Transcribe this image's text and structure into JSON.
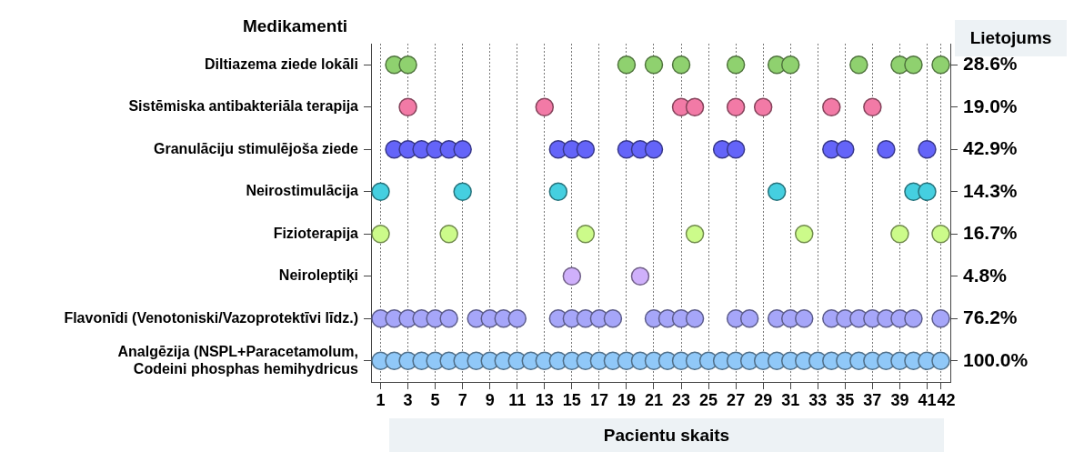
{
  "chart_data": {
    "type": "scatter",
    "orientation": "horizontal",
    "ylabel": "Medikamenti",
    "y2label": "Lietojums",
    "xlabel": "Pacientu skaits",
    "xlim": [
      0.3,
      42.7
    ],
    "xticks": [
      1,
      3,
      5,
      7,
      9,
      11,
      13,
      15,
      17,
      19,
      21,
      23,
      25,
      27,
      29,
      31,
      33,
      35,
      37,
      39,
      41,
      42
    ],
    "categories": [
      "Diltiazema ziede lokāli",
      "Sistēmiska antibakteriāla terapija",
      "Granulāciju stimulējoša ziede",
      "Neirostimulācija",
      "Fizioterapija",
      "Neiroleptiķi",
      "Flavonīdi (Venotoniski/Vazoprotektīvi līdz.)",
      "Analgēzija (NSPL+Paracetamolum,\nCodeini phosphas hemihydricus"
    ],
    "y2_categories": [
      "28.6%",
      "19.0%",
      "42.9%",
      "14.3%",
      "16.7%",
      "4.8%",
      "76.2%",
      "100.0%"
    ],
    "grid": "x",
    "legend": false,
    "marker": "circle",
    "series": [
      {
        "color": "#8fd16f",
        "values": [
          2,
          3,
          19,
          21,
          23,
          27,
          30,
          31,
          36,
          39,
          40,
          42
        ],
        "x": [
          "Diltiazema ziede lokāli",
          "Diltiazema ziede lokāli",
          "Diltiazema ziede lokāli",
          "Diltiazema ziede lokāli",
          "Diltiazema ziede lokāli",
          "Diltiazema ziede lokāli",
          "Diltiazema ziede lokāli",
          "Diltiazema ziede lokāli",
          "Diltiazema ziede lokāli",
          "Diltiazema ziede lokāli",
          "Diltiazema ziede lokāli",
          "Diltiazema ziede lokāli"
        ]
      },
      {
        "color": "#f27aa6",
        "values": [
          3,
          13,
          23,
          24,
          27,
          29,
          34,
          37
        ],
        "x": [
          "Sistēmiska antibakteriāla terapija",
          "Sistēmiska antibakteriāla terapija",
          "Sistēmiska antibakteriāla terapija",
          "Sistēmiska antibakteriāla terapija",
          "Sistēmiska antibakteriāla terapija",
          "Sistēmiska antibakteriāla terapija",
          "Sistēmiska antibakteriāla terapija",
          "Sistēmiska antibakteriāla terapija"
        ]
      },
      {
        "color": "#6464f9",
        "values": [
          2,
          3,
          4,
          5,
          6,
          7,
          14,
          15,
          16,
          19,
          20,
          21,
          26,
          27,
          34,
          35,
          38,
          41
        ],
        "x": [
          "Granulāciju stimulējoša ziede",
          "Granulāciju stimulējoša ziede",
          "Granulāciju stimulējoša ziede",
          "Granulāciju stimulējoša ziede",
          "Granulāciju stimulējoša ziede",
          "Granulāciju stimulējoša ziede",
          "Granulāciju stimulējoša ziede",
          "Granulāciju stimulējoša ziede",
          "Granulāciju stimulējoša ziede",
          "Granulāciju stimulējoša ziede",
          "Granulāciju stimulējoša ziede",
          "Granulāciju stimulējoša ziede",
          "Granulāciju stimulējoša ziede",
          "Granulāciju stimulējoša ziede",
          "Granulāciju stimulējoša ziede",
          "Granulāciju stimulējoša ziede",
          "Granulāciju stimulējoša ziede",
          "Granulāciju stimulējoša ziede"
        ]
      },
      {
        "color": "#45cfe0",
        "values": [
          1,
          7,
          14,
          30,
          40,
          41
        ],
        "x": [
          "Neirostimulācija",
          "Neirostimulācija",
          "Neirostimulācija",
          "Neirostimulācija",
          "Neirostimulācija",
          "Neirostimulācija"
        ]
      },
      {
        "color": "#ccfb8a",
        "values": [
          1,
          6,
          16,
          24,
          32,
          39,
          42
        ],
        "x": [
          "Fizioterapija",
          "Fizioterapija",
          "Fizioterapija",
          "Fizioterapija",
          "Fizioterapija",
          "Fizioterapija",
          "Fizioterapija"
        ]
      },
      {
        "color": "#cfb0fb",
        "values": [
          15,
          20
        ],
        "x": [
          "Neiroleptiķi",
          "Neiroleptiķi"
        ]
      },
      {
        "color": "#a6a6f9",
        "values": [
          1,
          2,
          3,
          4,
          5,
          6,
          8,
          9,
          10,
          11,
          14,
          15,
          16,
          17,
          18,
          21,
          22,
          23,
          24,
          27,
          28,
          30,
          31,
          32,
          34,
          35,
          36,
          37,
          38,
          39,
          40,
          42
        ],
        "x": [
          "Flavonīdi (Venotoniski/Vazoprotektīvi līdz.)",
          "Flavonīdi (Venotoniski/Vazoprotektīvi līdz.)",
          "Flavonīdi (Venotoniski/Vazoprotektīvi līdz.)",
          "Flavonīdi (Venotoniski/Vazoprotektīvi līdz.)",
          "Flavonīdi (Venotoniski/Vazoprotektīvi līdz.)",
          "Flavonīdi (Venotoniski/Vazoprotektīvi līdz.)",
          "Flavonīdi (Venotoniski/Vazoprotektīvi līdz.)",
          "Flavonīdi (Venotoniski/Vazoprotektīvi līdz.)",
          "Flavonīdi (Venotoniski/Vazoprotektīvi līdz.)",
          "Flavonīdi (Venotoniski/Vazoprotektīvi līdz.)",
          "Flavonīdi (Venotoniski/Vazoprotektīvi līdz.)",
          "Flavonīdi (Venotoniski/Vazoprotektīvi līdz.)",
          "Flavonīdi (Venotoniski/Vazoprotektīvi līdz.)",
          "Flavonīdi (Venotoniski/Vazoprotektīvi līdz.)",
          "Flavonīdi (Venotoniski/Vazoprotektīvi līdz.)",
          "Flavonīdi (Venotoniski/Vazoprotektīvi līdz.)",
          "Flavonīdi (Venotoniski/Vazoprotektīvi līdz.)",
          "Flavonīdi (Venotoniski/Vazoprotektīvi līdz.)",
          "Flavonīdi (Venotoniski/Vazoprotektīvi līdz.)",
          "Flavonīdi (Venotoniski/Vazoprotektīvi līdz.)",
          "Flavonīdi (Venotoniski/Vazoprotektīvi līdz.)",
          "Flavonīdi (Venotoniski/Vazoprotektīvi līdz.)",
          "Flavonīdi (Venotoniski/Vazoprotektīvi līdz.)",
          "Flavonīdi (Venotoniski/Vazoprotektīvi līdz.)",
          "Flavonīdi (Venotoniski/Vazoprotektīvi līdz.)",
          "Flavonīdi (Venotoniski/Vazoprotektīvi līdz.)",
          "Flavonīdi (Venotoniski/Vazoprotektīvi līdz.)",
          "Flavonīdi (Venotoniski/Vazoprotektīvi līdz.)",
          "Flavonīdi (Venotoniski/Vazoprotektīvi līdz.)",
          "Flavonīdi (Venotoniski/Vazoprotektīvi līdz.)",
          "Flavonīdi (Venotoniski/Vazoprotektīvi līdz.)",
          "Flavonīdi (Venotoniski/Vazoprotektīvi līdz.)"
        ]
      },
      {
        "color": "#90c8f8",
        "values": [
          1,
          2,
          3,
          4,
          5,
          6,
          7,
          8,
          9,
          10,
          11,
          12,
          13,
          14,
          15,
          16,
          17,
          18,
          19,
          20,
          21,
          22,
          23,
          24,
          25,
          26,
          27,
          28,
          29,
          30,
          31,
          32,
          33,
          34,
          35,
          36,
          37,
          38,
          39,
          40,
          41,
          42
        ],
        "x": [
          "Analgēzija (NSPL+Paracetamolum,\nCodeini phosphas hemihydricus",
          "Analgēzija (NSPL+Paracetamolum,\nCodeini phosphas hemihydricus",
          "Analgēzija (NSPL+Paracetamolum,\nCodeini phosphas hemihydricus",
          "Analgēzija (NSPL+Paracetamolum,\nCodeini phosphas hemihydricus",
          "Analgēzija (NSPL+Paracetamolum,\nCodeini phosphas hemihydricus",
          "Analgēzija (NSPL+Paracetamolum,\nCodeini phosphas hemihydricus",
          "Analgēzija (NSPL+Paracetamolum,\nCodeini phosphas hemihydricus",
          "Analgēzija (NSPL+Paracetamolum,\nCodeini phosphas hemihydricus",
          "Analgēzija (NSPL+Paracetamolum,\nCodeini phosphas hemihydricus",
          "Analgēzija (NSPL+Paracetamolum,\nCodeini phosphas hemihydricus",
          "Analgēzija (NSPL+Paracetamolum,\nCodeini phosphas hemihydricus",
          "Analgēzija (NSPL+Paracetamolum,\nCodeini phosphas hemihydricus",
          "Analgēzija (NSPL+Paracetamolum,\nCodeini phosphas hemihydricus",
          "Analgēzija (NSPL+Paracetamolum,\nCodeini phosphas hemihydricus",
          "Analgēzija (NSPL+Paracetamolum,\nCodeini phosphas hemihydricus",
          "Analgēzija (NSPL+Paracetamolum,\nCodeini phosphas hemihydricus",
          "Analgēzija (NSPL+Paracetamolum,\nCodeini phosphas hemihydricus",
          "Analgēzija (NSPL+Paracetamolum,\nCodeini phosphas hemihydricus",
          "Analgēzija (NSPL+Paracetamolum,\nCodeini phosphas hemihydricus",
          "Analgēzija (NSPL+Paracetamolum,\nCodeini phosphas hemihydricus",
          "Analgēzija (NSPL+Paracetamolum,\nCodeini phosphas hemihydricus",
          "Analgēzija (NSPL+Paracetamolum,\nCodeini phosphas hemihydricus",
          "Analgēzija (NSPL+Paracetamolum,\nCodeini phosphas hemihydricus",
          "Analgēzija (NSPL+Paracetamolum,\nCodeini phosphas hemihydricus",
          "Analgēzija (NSPL+Paracetamolum,\nCodeini phosphas hemihydricus",
          "Analgēzija (NSPL+Paracetamolum,\nCodeini phosphas hemihydricus",
          "Analgēzija (NSPL+Paracetamolum,\nCodeini phosphas hemihydricus",
          "Analgēzija (NSPL+Paracetamolum,\nCodeini phosphas hemihydricus",
          "Analgēzija (NSPL+Paracetamolum,\nCodeini phosphas hemihydricus",
          "Analgēzija (NSPL+Paracetamolum,\nCodeini phosphas hemihydricus",
          "Analgēzija (NSPL+Paracetamolum,\nCodeini phosphas hemihydricus",
          "Analgēzija (NSPL+Paracetamolum,\nCodeini phosphas hemihydricus",
          "Analgēzija (NSPL+Paracetamolum,\nCodeini phosphas hemihydricus",
          "Analgēzija (NSPL+Paracetamolum,\nCodeini phosphas hemihydricus",
          "Analgēzija (NSPL+Paracetamolum,\nCodeini phosphas hemihydricus",
          "Analgēzija (NSPL+Paracetamolum,\nCodeini phosphas hemihydricus",
          "Analgēzija (NSPL+Paracetamolum,\nCodeini phosphas hemihydricus",
          "Analgēzija (NSPL+Paracetamolum,\nCodeini phosphas hemihydricus",
          "Analgēzija (NSPL+Paracetamolum,\nCodeini phosphas hemihydricus",
          "Analgēzija (NSPL+Paracetamolum,\nCodeini phosphas hemihydricus",
          "Analgēzija (NSPL+Paracetamolum,\nCodeini phosphas hemihydricus",
          "Analgēzija (NSPL+Paracetamolum,\nCodeini phosphas hemihydricus"
        ]
      }
    ]
  }
}
